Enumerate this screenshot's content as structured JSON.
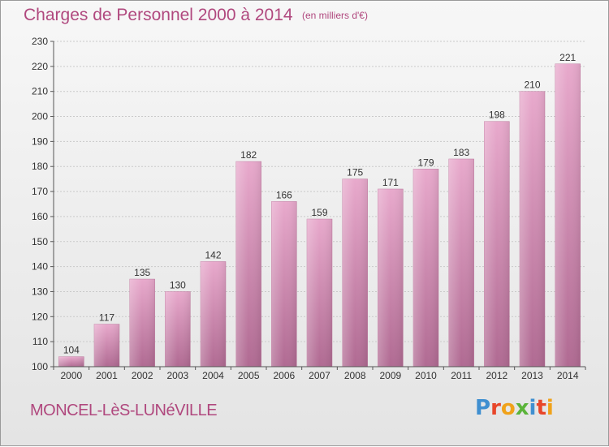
{
  "title": "Charges de Personnel 2000 à 2014",
  "subtitle": "(en milliers d'€)",
  "commune": "MONCEL-LèS-LUNéVILLE",
  "brand": {
    "letters": [
      "P",
      "r",
      "o",
      "x",
      "i",
      "t",
      "i"
    ],
    "colors": [
      "#3f8fd0",
      "#e8462a",
      "#f0a21a",
      "#5bb43a",
      "#3f8fd0",
      "#e8462a",
      "#f0a21a"
    ]
  },
  "chart_data": {
    "type": "bar",
    "title": "Charges de Personnel 2000 à 2014",
    "categories": [
      "2000",
      "2001",
      "2002",
      "2003",
      "2004",
      "2005",
      "2006",
      "2007",
      "2008",
      "2009",
      "2010",
      "2011",
      "2012",
      "2013",
      "2014"
    ],
    "values": [
      104,
      117,
      135,
      130,
      142,
      182,
      166,
      159,
      175,
      171,
      179,
      183,
      198,
      210,
      221
    ],
    "ylim": [
      100,
      230
    ],
    "yticks": [
      100,
      110,
      120,
      130,
      140,
      150,
      160,
      170,
      180,
      190,
      200,
      210,
      220,
      230
    ],
    "grid": true,
    "bar_color": "#d58ab0"
  }
}
